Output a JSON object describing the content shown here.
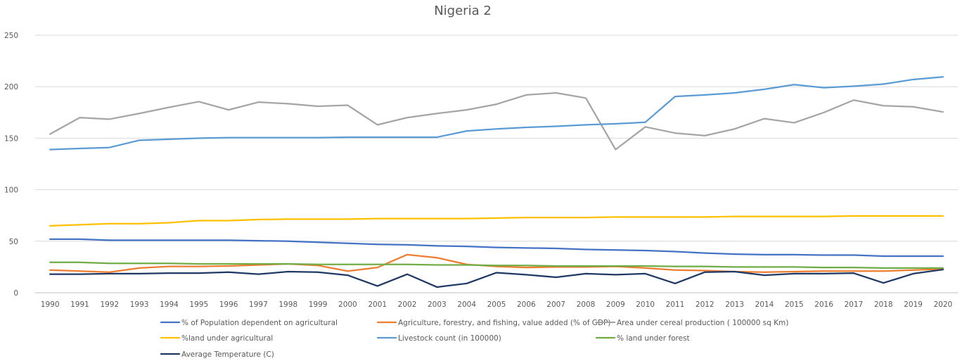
{
  "chart_data": {
    "type": "line",
    "title": "Nigeria 2",
    "xlabel": "",
    "ylabel": "",
    "ylim": [
      0,
      250
    ],
    "yticks": [
      0,
      50,
      100,
      150,
      200,
      250
    ],
    "grid": true,
    "legend_position": "bottom",
    "x": [
      "1990",
      "1991",
      "1992",
      "1993",
      "1994",
      "1995",
      "1996",
      "1997",
      "1998",
      "1999",
      "2000",
      "2001",
      "2002",
      "2003",
      "2004",
      "2005",
      "2006",
      "2007",
      "2008",
      "2009",
      "2010",
      "2011",
      "2012",
      "2013",
      "2014",
      "2015",
      "2016",
      "2017",
      "2018",
      "2019",
      "2020"
    ],
    "series": [
      {
        "name": "% of Population dependent on agricultural",
        "color": "#4472C4",
        "values": [
          52,
          52,
          51,
          51,
          51,
          51,
          51,
          50.5,
          50,
          49,
          48,
          47,
          46.5,
          45.5,
          45,
          44,
          43.5,
          43,
          42,
          41.5,
          41,
          40,
          38.5,
          37.5,
          37,
          37,
          36.5,
          36.5,
          35.5,
          35.5,
          35.5
        ]
      },
      {
        "name": "Agriculture, forestry, and fishing, value added (% of GDP)",
        "color": "#ED7D31",
        "values": [
          22,
          21,
          20,
          24,
          25.5,
          25.5,
          26,
          27,
          28,
          26.5,
          21,
          24.5,
          37,
          34,
          27.5,
          25.5,
          24.5,
          25,
          25,
          25.5,
          24,
          22,
          21.5,
          20.5,
          20,
          20.5,
          21,
          21,
          21,
          22,
          23
        ]
      },
      {
        "name": "Area under cereal production ( 100000 sq Km)",
        "color": "#A5A5A5",
        "values": [
          154,
          170,
          168.5,
          174,
          180,
          185.5,
          177.5,
          185,
          183.5,
          181,
          182,
          163,
          170,
          174,
          177.5,
          183,
          192,
          194,
          189,
          139,
          161,
          155,
          152.5,
          159,
          169,
          165,
          175,
          187,
          181.5,
          180.5,
          175.5
        ]
      },
      {
        "name": "%land under agricultural",
        "color": "#FFC000",
        "values": [
          65,
          66,
          67,
          67,
          68,
          70,
          70,
          71,
          71.5,
          71.5,
          71.5,
          72,
          72,
          72,
          72,
          72.5,
          73,
          73,
          73,
          73.5,
          73.5,
          73.5,
          73.5,
          74,
          74,
          74,
          74,
          74.5,
          74.5,
          74.5,
          74.5
        ]
      },
      {
        "name": "Livestock count (in 100000)",
        "color": "#5B9BD5",
        "values": [
          139,
          140,
          141,
          148,
          149,
          150,
          150.5,
          150.5,
          150.5,
          150.5,
          151,
          151,
          151,
          151,
          157,
          159,
          160.5,
          161.5,
          163,
          164,
          165.5,
          190.5,
          192,
          194,
          197.5,
          202,
          199,
          200.5,
          202.5,
          207,
          209.5
        ]
      },
      {
        "name": "% land under forest",
        "color": "#70AD47",
        "values": [
          29.5,
          29.5,
          28.5,
          28.5,
          28.5,
          28,
          28,
          28,
          28,
          27.5,
          27.5,
          27.5,
          27.5,
          27,
          27,
          26.5,
          26.5,
          26,
          26,
          26,
          26,
          25.5,
          25.5,
          25,
          25,
          25,
          24.5,
          24.5,
          24,
          24,
          24
        ]
      },
      {
        "name": "Average Temperature (C)",
        "color": "#203864",
        "values": [
          18,
          18,
          18.5,
          18.5,
          19,
          19,
          20,
          18,
          20.5,
          20,
          17,
          6.5,
          18,
          5.5,
          9,
          19.5,
          17.5,
          15,
          18.5,
          17.5,
          18.5,
          9,
          20,
          20.5,
          17,
          18.5,
          18.5,
          19,
          9.5,
          18.5,
          22.5
        ]
      }
    ]
  }
}
